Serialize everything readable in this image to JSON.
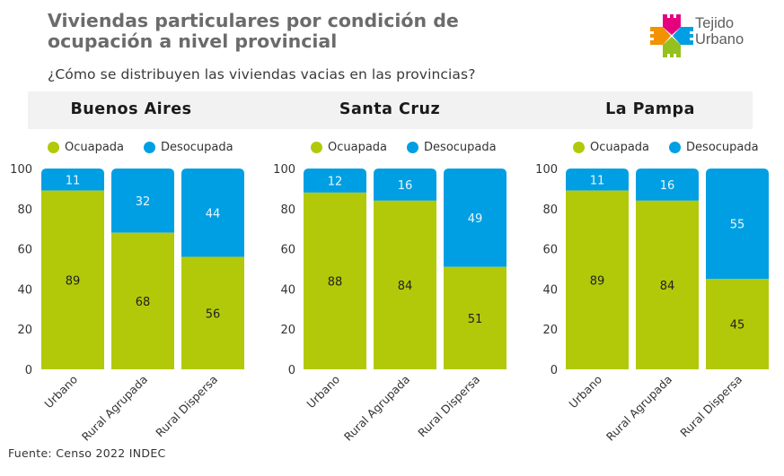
{
  "header": {
    "title": "Viviendas particulares por condición de ocupación a nivel provincial",
    "subtitle": "¿Cómo se distribuyen las viviendas vacias en las provincias?"
  },
  "logo": {
    "line1": "Tejido",
    "line2": "Urbano",
    "colors": [
      "#e5007e",
      "#f39200",
      "#009fe3",
      "#95c11f"
    ]
  },
  "colors": {
    "ocupada": "#b2c90a",
    "desocupada": "#009fe3",
    "header_bar": "#f2f2f2"
  },
  "legend": {
    "ocupada": "Ocuapada",
    "desocupada": "Desocupada"
  },
  "source": "Fuente: Censo 2022 INDEC",
  "chart_data": [
    {
      "type": "bar",
      "stacked": true,
      "title": "Buenos Aires",
      "categories": [
        "Urbano",
        "Rural Agrupada",
        "Rural Dispersa"
      ],
      "series": [
        {
          "name": "Ocuapada",
          "values": [
            89,
            68,
            56
          ]
        },
        {
          "name": "Desocupada",
          "values": [
            11,
            32,
            44
          ]
        }
      ],
      "yticks": [
        "0",
        "20",
        "40",
        "60",
        "80",
        "100"
      ],
      "ylim": [
        0,
        100
      ],
      "xlabel": "",
      "ylabel": "",
      "legend": "top",
      "grid": false
    },
    {
      "type": "bar",
      "stacked": true,
      "title": "Santa Cruz",
      "categories": [
        "Urbano",
        "Rural Agrupada",
        "Rural Dispersa"
      ],
      "series": [
        {
          "name": "Ocuapada",
          "values": [
            88,
            84,
            51
          ]
        },
        {
          "name": "Desocupada",
          "values": [
            12,
            16,
            49
          ]
        }
      ],
      "yticks": [
        "0",
        "20",
        "40",
        "60",
        "80",
        "100"
      ],
      "ylim": [
        0,
        100
      ],
      "xlabel": "",
      "ylabel": "",
      "legend": "top",
      "grid": false
    },
    {
      "type": "bar",
      "stacked": true,
      "title": "La Pampa",
      "categories": [
        "Urbano",
        "Rural Agrupada",
        "Rural Dispersa"
      ],
      "series": [
        {
          "name": "Ocuapada",
          "values": [
            89,
            84,
            45
          ]
        },
        {
          "name": "Desocupada",
          "values": [
            11,
            16,
            55
          ]
        }
      ],
      "yticks": [
        "0",
        "20",
        "40",
        "60",
        "80",
        "100"
      ],
      "ylim": [
        0,
        100
      ],
      "xlabel": "",
      "ylabel": "",
      "legend": "top",
      "grid": false
    }
  ]
}
